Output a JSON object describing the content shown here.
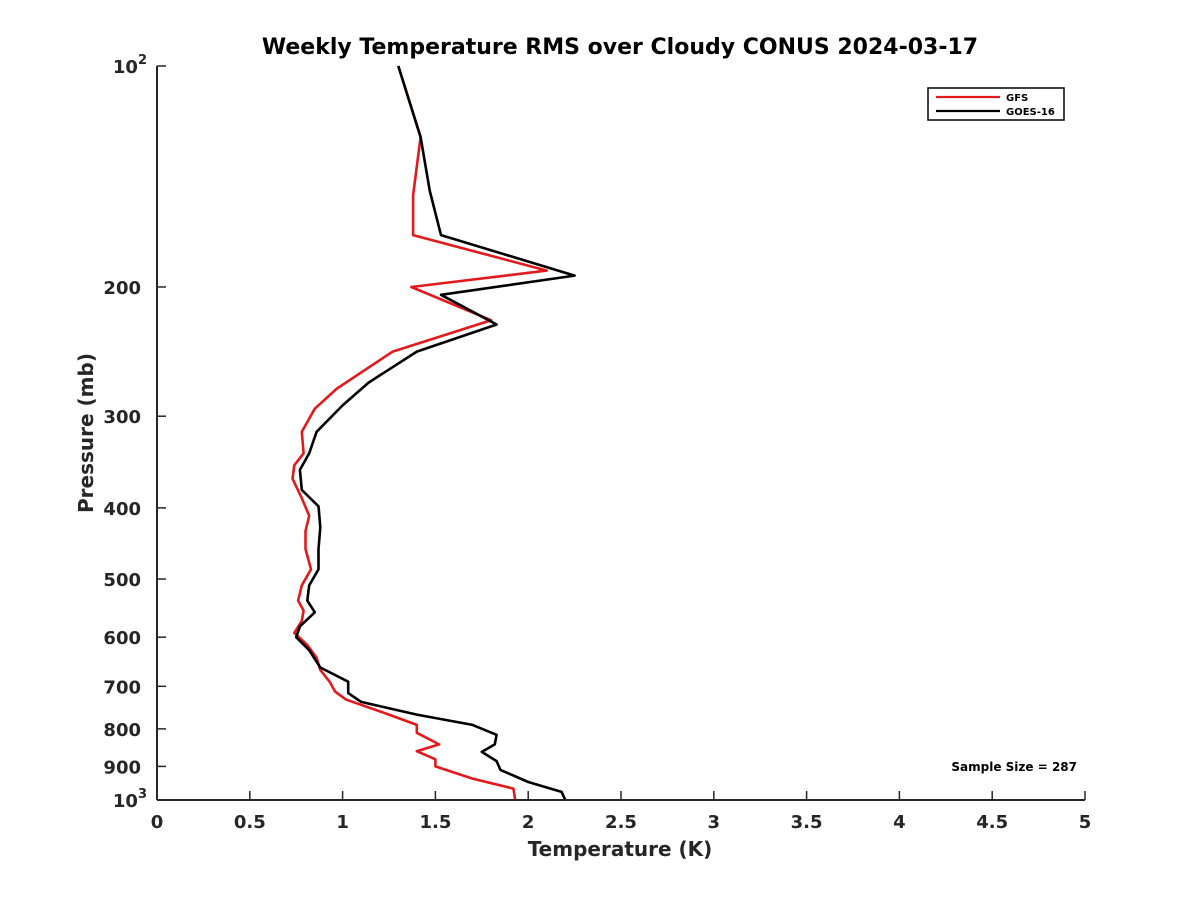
{
  "chart_data": {
    "type": "line",
    "title": "Weekly Temperature RMS over Cloudy CONUS 2024-03-17",
    "xlabel": "Temperature (K)",
    "ylabel": "Pressure (mb)",
    "xlim": [
      0,
      5
    ],
    "ylim": [
      100,
      1000
    ],
    "y_scale": "log",
    "y_reversed": true,
    "grid": false,
    "legend_position": "top-right",
    "x_ticks": [
      0,
      0.5,
      1,
      1.5,
      2,
      2.5,
      3,
      3.5,
      4,
      4.5,
      5
    ],
    "x_tick_labels": [
      "0",
      "0.5",
      "1",
      "1.5",
      "2",
      "2.5",
      "3",
      "3.5",
      "4",
      "4.5",
      "5"
    ],
    "y_ticks": [
      {
        "value": 100,
        "base": "10",
        "exp": "2"
      },
      {
        "value": 200,
        "label": "200"
      },
      {
        "value": 300,
        "label": "300"
      },
      {
        "value": 400,
        "label": "400"
      },
      {
        "value": 500,
        "label": "500"
      },
      {
        "value": 600,
        "label": "600"
      },
      {
        "value": 700,
        "label": "700"
      },
      {
        "value": 800,
        "label": "800"
      },
      {
        "value": 900,
        "label": "900"
      },
      {
        "value": 1000,
        "base": "10",
        "exp": "3"
      }
    ],
    "series": [
      {
        "name": "GFS",
        "color": "#e31a1c",
        "points": [
          [
            1.3,
            100
          ],
          [
            1.42,
            125
          ],
          [
            1.38,
            150
          ],
          [
            1.38,
            170
          ],
          [
            2.1,
            190
          ],
          [
            1.37,
            200
          ],
          [
            1.8,
            222
          ],
          [
            1.27,
            245
          ],
          [
            0.97,
            275
          ],
          [
            0.85,
            293
          ],
          [
            0.78,
            315
          ],
          [
            0.79,
            337
          ],
          [
            0.74,
            350
          ],
          [
            0.73,
            365
          ],
          [
            0.78,
            388
          ],
          [
            0.82,
            410
          ],
          [
            0.8,
            430
          ],
          [
            0.8,
            455
          ],
          [
            0.83,
            485
          ],
          [
            0.78,
            510
          ],
          [
            0.76,
            535
          ],
          [
            0.79,
            552
          ],
          [
            0.78,
            570
          ],
          [
            0.74,
            592
          ],
          [
            0.81,
            615
          ],
          [
            0.86,
            640
          ],
          [
            0.88,
            665
          ],
          [
            0.93,
            690
          ],
          [
            0.96,
            712
          ],
          [
            1.02,
            730
          ],
          [
            1.25,
            765
          ],
          [
            1.4,
            790
          ],
          [
            1.4,
            810
          ],
          [
            1.52,
            840
          ],
          [
            1.4,
            858
          ],
          [
            1.5,
            880
          ],
          [
            1.5,
            900
          ],
          [
            1.7,
            935
          ],
          [
            1.92,
            965
          ],
          [
            1.93,
            1000
          ]
        ]
      },
      {
        "name": "GOES-16",
        "color": "#000000",
        "points": [
          [
            1.3,
            100
          ],
          [
            1.42,
            125
          ],
          [
            1.47,
            148
          ],
          [
            1.53,
            170
          ],
          [
            2.25,
            193
          ],
          [
            1.53,
            205
          ],
          [
            1.83,
            225
          ],
          [
            1.4,
            245
          ],
          [
            1.14,
            270
          ],
          [
            1.0,
            290
          ],
          [
            0.86,
            315
          ],
          [
            0.82,
            337
          ],
          [
            0.77,
            355
          ],
          [
            0.78,
            378
          ],
          [
            0.87,
            398
          ],
          [
            0.88,
            425
          ],
          [
            0.87,
            455
          ],
          [
            0.87,
            485
          ],
          [
            0.82,
            510
          ],
          [
            0.81,
            535
          ],
          [
            0.85,
            555
          ],
          [
            0.77,
            580
          ],
          [
            0.75,
            600
          ],
          [
            0.82,
            625
          ],
          [
            0.88,
            660
          ],
          [
            1.03,
            690
          ],
          [
            1.03,
            715
          ],
          [
            1.1,
            735
          ],
          [
            1.4,
            765
          ],
          [
            1.7,
            790
          ],
          [
            1.83,
            815
          ],
          [
            1.82,
            840
          ],
          [
            1.75,
            860
          ],
          [
            1.83,
            885
          ],
          [
            1.85,
            910
          ],
          [
            2.0,
            945
          ],
          [
            2.18,
            975
          ],
          [
            2.2,
            1000
          ]
        ]
      }
    ],
    "annotation": "Sample Size = 287"
  }
}
